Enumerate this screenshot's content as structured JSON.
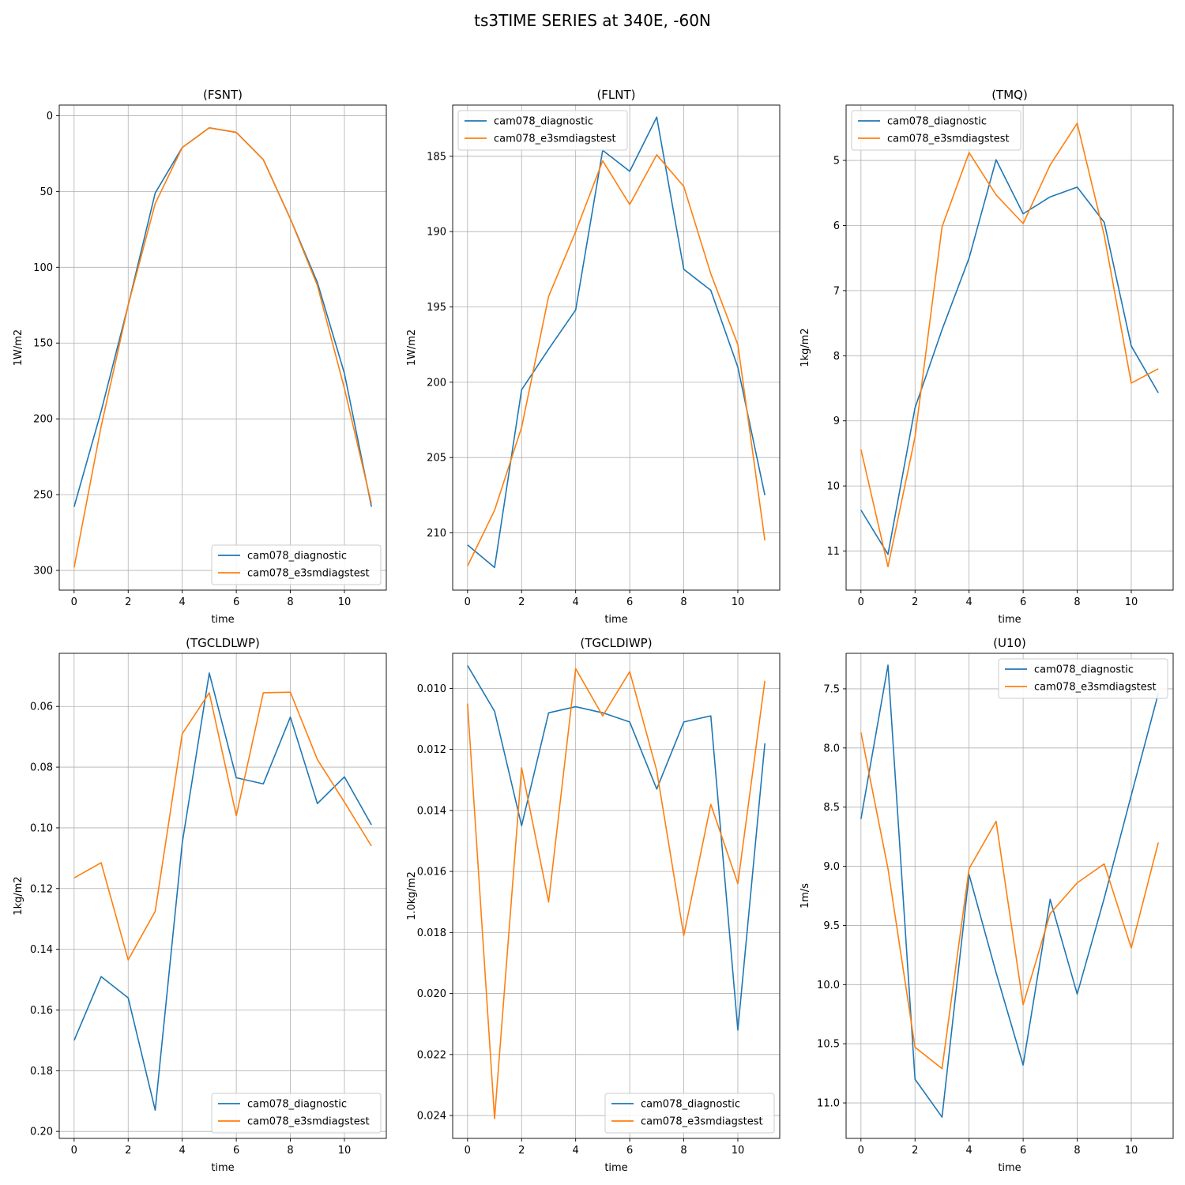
{
  "figure_title": "ts3TIME SERIES at 340E, -60N",
  "colors": {
    "series_0": "#1f77b4",
    "series_1": "#ff7f0e",
    "grid": "#b0b0b0"
  },
  "chart_data": [
    {
      "type": "line",
      "title": "(FSNT)",
      "xlabel": "time",
      "ylabel": "1W/m2",
      "y_inverted": true,
      "grid": true,
      "legend_position": "lower-right",
      "xlim": [
        -0.55,
        11.55
      ],
      "ylim": [
        -7,
        313
      ],
      "x_ticks": [
        0,
        2,
        4,
        6,
        8,
        10
      ],
      "y_ticks": [
        0,
        50,
        100,
        150,
        200,
        250,
        300
      ],
      "y_tick_labels": [
        "0",
        "50",
        "100",
        "150",
        "200",
        "250",
        "300"
      ],
      "x": [
        0,
        1,
        2,
        3,
        4,
        5,
        6,
        7,
        8,
        9,
        10,
        11
      ],
      "series": [
        {
          "name": "cam078_diagnostic",
          "values": [
            258,
            195,
            125,
            51,
            21,
            8,
            11,
            29,
            68,
            110,
            170,
            258
          ]
        },
        {
          "name": "cam078_e3smdiagstest",
          "values": [
            298,
            205,
            125,
            58,
            21,
            8,
            11,
            29,
            68,
            112,
            180,
            256
          ]
        }
      ]
    },
    {
      "type": "line",
      "title": "(FLNT)",
      "xlabel": "time",
      "ylabel": "1W/m2",
      "y_inverted": true,
      "grid": true,
      "legend_position": "upper-left",
      "xlim": [
        -0.55,
        11.55
      ],
      "ylim": [
        181.6,
        213.8
      ],
      "x_ticks": [
        0,
        2,
        4,
        6,
        8,
        10
      ],
      "y_ticks": [
        185,
        190,
        195,
        200,
        205,
        210
      ],
      "y_tick_labels": [
        "185",
        "190",
        "195",
        "200",
        "205",
        "210"
      ],
      "x": [
        0,
        1,
        2,
        3,
        4,
        5,
        6,
        7,
        8,
        9,
        10,
        11
      ],
      "series": [
        {
          "name": "cam078_diagnostic",
          "values": [
            210.8,
            212.3,
            200.5,
            197.8,
            195.2,
            184.6,
            186.0,
            182.4,
            192.5,
            193.9,
            199.0,
            207.5
          ]
        },
        {
          "name": "cam078_e3smdiagstest",
          "values": [
            212.2,
            208.5,
            203.0,
            194.3,
            190.0,
            185.3,
            188.2,
            184.9,
            187.0,
            192.8,
            197.5,
            210.5
          ]
        }
      ]
    },
    {
      "type": "line",
      "title": "(TMQ)",
      "xlabel": "time",
      "ylabel": "1kg/m2",
      "y_inverted": true,
      "grid": true,
      "legend_position": "upper-left",
      "xlim": [
        -0.55,
        11.55
      ],
      "ylim": [
        4.15,
        11.6
      ],
      "x_ticks": [
        0,
        2,
        4,
        6,
        8,
        10
      ],
      "y_ticks": [
        5,
        6,
        7,
        8,
        9,
        10,
        11
      ],
      "y_tick_labels": [
        "5",
        "6",
        "7",
        "8",
        "9",
        "10",
        "11"
      ],
      "x": [
        0,
        1,
        2,
        3,
        4,
        5,
        6,
        7,
        8,
        9,
        10,
        11
      ],
      "series": [
        {
          "name": "cam078_diagnostic",
          "values": [
            10.37,
            11.05,
            8.8,
            7.6,
            6.5,
            4.99,
            5.82,
            5.56,
            5.41,
            5.95,
            7.85,
            8.57
          ]
        },
        {
          "name": "cam078_e3smdiagstest",
          "values": [
            9.44,
            11.24,
            9.25,
            6.02,
            4.88,
            5.53,
            5.97,
            5.07,
            4.43,
            6.15,
            8.42,
            8.2
          ]
        }
      ]
    },
    {
      "type": "line",
      "title": "(TGCLDLWP)",
      "xlabel": "time",
      "ylabel": "1kg/m2",
      "y_inverted": true,
      "grid": true,
      "legend_position": "lower-right",
      "xlim": [
        -0.55,
        11.55
      ],
      "ylim": [
        0.0425,
        0.2023
      ],
      "x_ticks": [
        0,
        2,
        4,
        6,
        8,
        10
      ],
      "y_ticks": [
        0.06,
        0.08,
        0.1,
        0.12,
        0.14,
        0.16,
        0.18,
        0.2
      ],
      "y_tick_labels": [
        "0.06",
        "0.08",
        "0.10",
        "0.12",
        "0.14",
        "0.16",
        "0.18",
        "0.20"
      ],
      "x": [
        0,
        1,
        2,
        3,
        4,
        5,
        6,
        7,
        8,
        9,
        10,
        11
      ],
      "series": [
        {
          "name": "cam078_diagnostic",
          "values": [
            0.17,
            0.149,
            0.156,
            0.193,
            0.105,
            0.049,
            0.0835,
            0.0855,
            0.0635,
            0.092,
            0.0832,
            0.099
          ]
        },
        {
          "name": "cam078_e3smdiagstest",
          "values": [
            0.1165,
            0.1115,
            0.1435,
            0.1275,
            0.069,
            0.0555,
            0.096,
            0.0555,
            0.0553,
            0.0775,
            0.0915,
            0.106
          ]
        }
      ]
    },
    {
      "type": "line",
      "title": "(TGCLDIWP)",
      "xlabel": "time",
      "ylabel": "1.0kg/m2",
      "y_inverted": true,
      "grid": true,
      "legend_position": "lower-right",
      "xlim": [
        -0.55,
        11.55
      ],
      "ylim": [
        0.00885,
        0.02475
      ],
      "x_ticks": [
        0,
        2,
        4,
        6,
        8,
        10
      ],
      "y_ticks": [
        0.01,
        0.012,
        0.014,
        0.016,
        0.018,
        0.02,
        0.022,
        0.024
      ],
      "y_tick_labels": [
        "0.010",
        "0.012",
        "0.014",
        "0.016",
        "0.018",
        "0.020",
        "0.022",
        "0.024"
      ],
      "x": [
        0,
        1,
        2,
        3,
        4,
        5,
        6,
        7,
        8,
        9,
        10,
        11
      ],
      "series": [
        {
          "name": "cam078_diagnostic",
          "values": [
            0.00925,
            0.01075,
            0.0145,
            0.0108,
            0.0106,
            0.0108,
            0.0111,
            0.0133,
            0.0111,
            0.0109,
            0.0212,
            0.0118
          ]
        },
        {
          "name": "cam078_e3smdiagstest",
          "values": [
            0.0105,
            0.0241,
            0.0126,
            0.017,
            0.00935,
            0.0109,
            0.00945,
            0.0127,
            0.0181,
            0.0138,
            0.0164,
            0.00975
          ]
        }
      ]
    },
    {
      "type": "line",
      "title": "(U10)",
      "xlabel": "time",
      "ylabel": "1m/s",
      "y_inverted": true,
      "grid": true,
      "legend_position": "upper-right",
      "xlim": [
        -0.55,
        11.55
      ],
      "ylim": [
        7.2,
        11.3
      ],
      "x_ticks": [
        0,
        2,
        4,
        6,
        8,
        10
      ],
      "y_ticks": [
        7.5,
        8.0,
        8.5,
        9.0,
        9.5,
        10.0,
        10.5,
        11.0
      ],
      "y_tick_labels": [
        "7.5",
        "8.0",
        "8.5",
        "9.0",
        "9.5",
        "10.0",
        "10.5",
        "11.0"
      ],
      "x": [
        0,
        1,
        2,
        3,
        4,
        5,
        6,
        7,
        8,
        9,
        10,
        11
      ],
      "series": [
        {
          "name": "cam078_diagnostic",
          "values": [
            8.6,
            7.3,
            10.8,
            11.12,
            9.07,
            9.9,
            10.68,
            9.28,
            10.08,
            9.27,
            8.4,
            7.54
          ]
        },
        {
          "name": "cam078_e3smdiagstest",
          "values": [
            7.87,
            9.02,
            10.53,
            10.71,
            9.02,
            8.62,
            10.17,
            9.4,
            9.14,
            8.98,
            9.69,
            8.8
          ]
        }
      ]
    }
  ]
}
